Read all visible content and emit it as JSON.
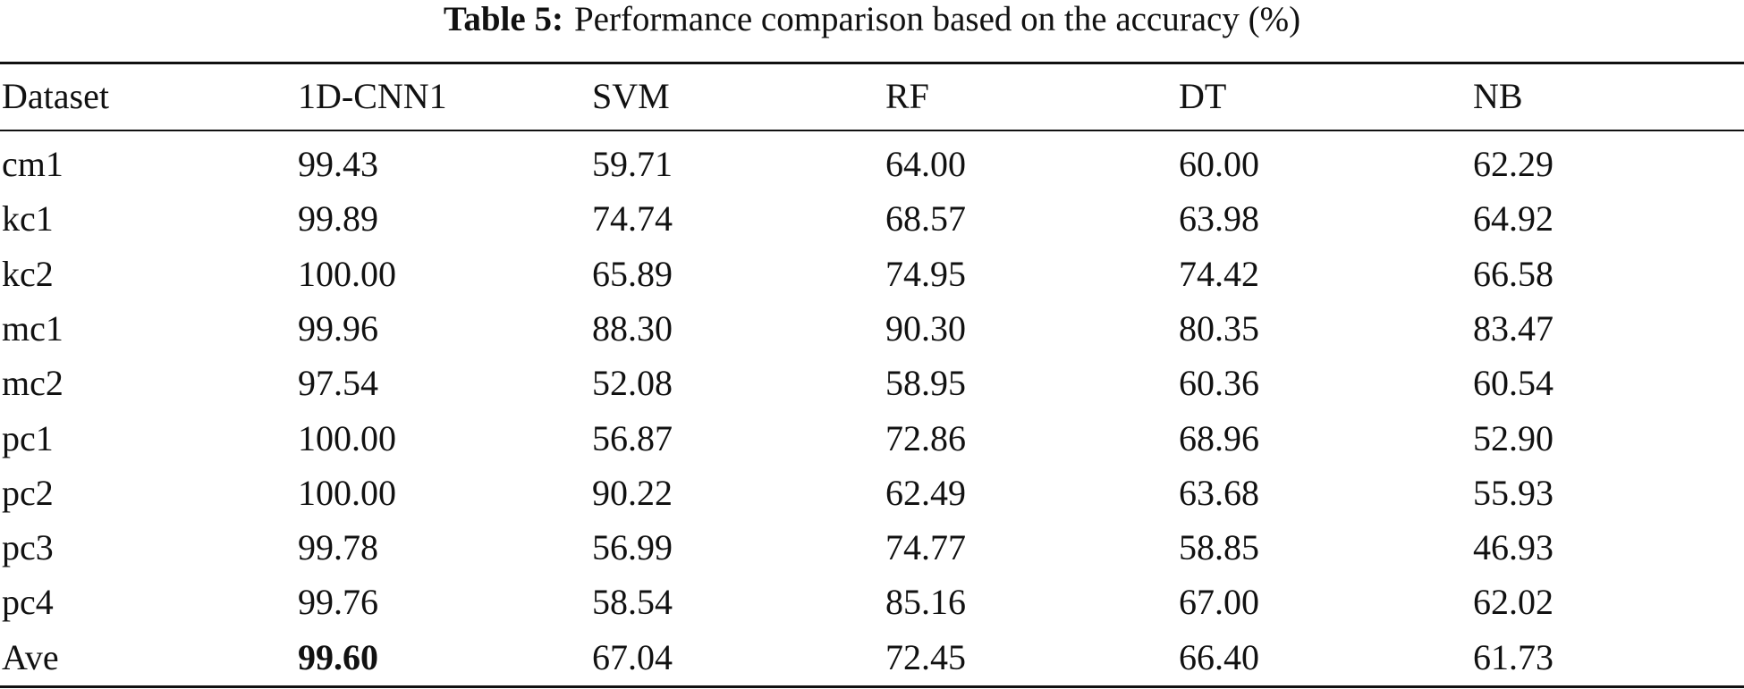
{
  "caption": {
    "label": "Table 5:",
    "text": "Performance comparison based on the accuracy (%)"
  },
  "table": {
    "columns": [
      "Dataset",
      "1D-CNN1",
      "SVM",
      "RF",
      "DT",
      "NB"
    ],
    "rows": [
      [
        "cm1",
        "99.43",
        "59.71",
        "64.00",
        "60.00",
        "62.29"
      ],
      [
        "kc1",
        "99.89",
        "74.74",
        "68.57",
        "63.98",
        "64.92"
      ],
      [
        "kc2",
        "100.00",
        "65.89",
        "74.95",
        "74.42",
        "66.58"
      ],
      [
        "mc1",
        "99.96",
        "88.30",
        "90.30",
        "80.35",
        "83.47"
      ],
      [
        "mc2",
        "97.54",
        "52.08",
        "58.95",
        "60.36",
        "60.54"
      ],
      [
        "pc1",
        "100.00",
        "56.87",
        "72.86",
        "68.96",
        "52.90"
      ],
      [
        "pc2",
        "100.00",
        "90.22",
        "62.49",
        "63.68",
        "55.93"
      ],
      [
        "pc3",
        "99.78",
        "56.99",
        "74.77",
        "58.85",
        "46.93"
      ],
      [
        "pc4",
        "99.76",
        "58.54",
        "85.16",
        "67.00",
        "62.02"
      ],
      [
        "Ave",
        "99.60",
        "67.04",
        "72.45",
        "66.40",
        "61.73"
      ]
    ]
  }
}
